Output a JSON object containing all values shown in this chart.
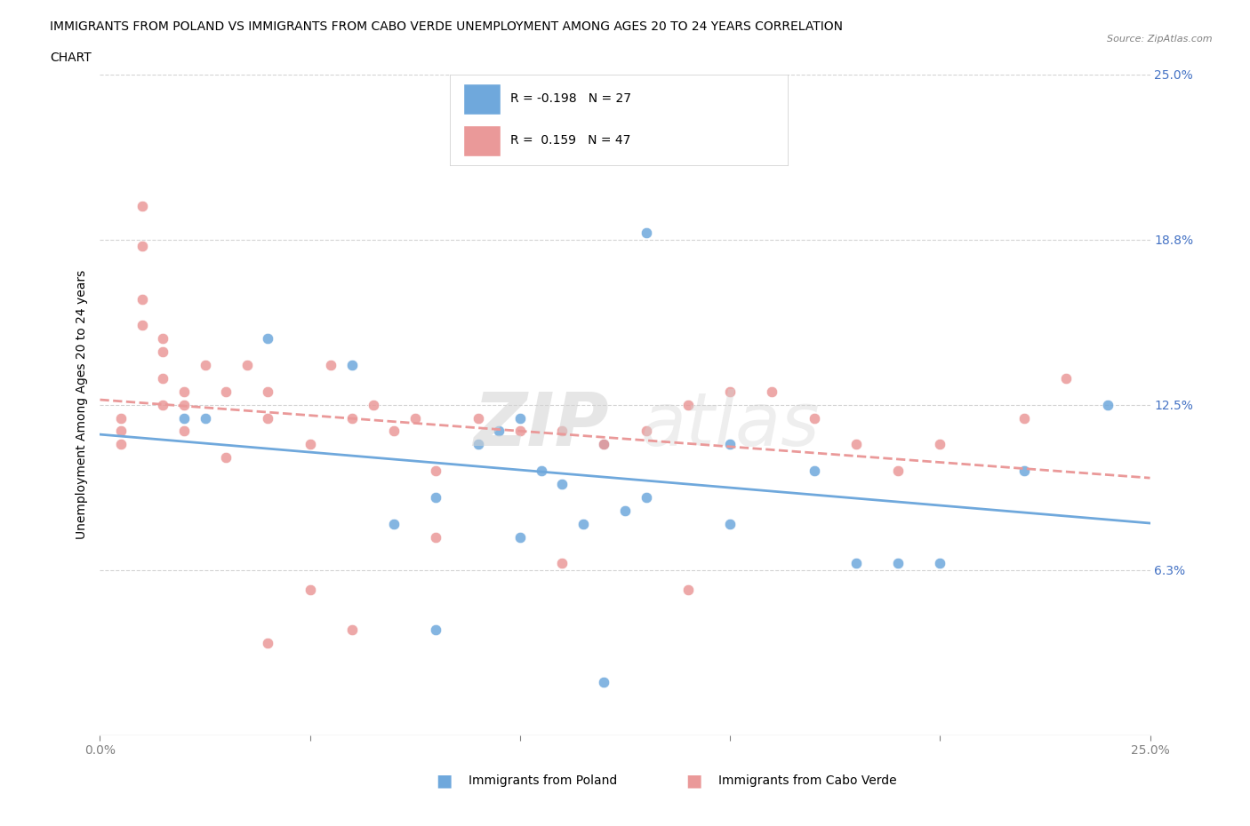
{
  "title_line1": "IMMIGRANTS FROM POLAND VS IMMIGRANTS FROM CABO VERDE UNEMPLOYMENT AMONG AGES 20 TO 24 YEARS CORRELATION",
  "title_line2": "CHART",
  "source": "Source: ZipAtlas.com",
  "ylabel": "Unemployment Among Ages 20 to 24 years",
  "xmin": 0.0,
  "xmax": 0.25,
  "ymin": 0.0,
  "ymax": 0.25,
  "poland_color": "#6fa8dc",
  "cabo_verde_color": "#ea9999",
  "poland_R": -0.198,
  "poland_N": 27,
  "cabo_verde_R": 0.159,
  "cabo_verde_N": 47,
  "tick_label_color": "#4472c4",
  "poland_scatter_x": [
    0.02,
    0.025,
    0.04,
    0.06,
    0.07,
    0.08,
    0.09,
    0.095,
    0.1,
    0.105,
    0.11,
    0.115,
    0.12,
    0.125,
    0.13,
    0.15,
    0.17,
    0.18,
    0.2,
    0.22,
    0.24,
    0.13,
    0.1,
    0.08,
    0.15,
    0.19,
    0.12
  ],
  "poland_scatter_y": [
    0.12,
    0.12,
    0.15,
    0.14,
    0.08,
    0.09,
    0.11,
    0.115,
    0.12,
    0.1,
    0.095,
    0.08,
    0.11,
    0.085,
    0.09,
    0.11,
    0.1,
    0.065,
    0.065,
    0.1,
    0.125,
    0.19,
    0.075,
    0.04,
    0.08,
    0.065,
    0.02
  ],
  "cabo_verde_scatter_x": [
    0.005,
    0.005,
    0.005,
    0.01,
    0.01,
    0.01,
    0.01,
    0.015,
    0.015,
    0.015,
    0.015,
    0.02,
    0.02,
    0.02,
    0.025,
    0.03,
    0.03,
    0.035,
    0.04,
    0.04,
    0.05,
    0.055,
    0.06,
    0.065,
    0.07,
    0.075,
    0.08,
    0.09,
    0.1,
    0.11,
    0.12,
    0.13,
    0.14,
    0.15,
    0.16,
    0.17,
    0.18,
    0.19,
    0.2,
    0.22,
    0.23,
    0.14,
    0.11,
    0.08,
    0.06,
    0.05,
    0.04
  ],
  "cabo_verde_scatter_y": [
    0.12,
    0.115,
    0.11,
    0.2,
    0.185,
    0.165,
    0.155,
    0.15,
    0.145,
    0.135,
    0.125,
    0.13,
    0.125,
    0.115,
    0.14,
    0.13,
    0.105,
    0.14,
    0.13,
    0.12,
    0.11,
    0.14,
    0.12,
    0.125,
    0.115,
    0.12,
    0.1,
    0.12,
    0.115,
    0.115,
    0.11,
    0.115,
    0.125,
    0.13,
    0.13,
    0.12,
    0.11,
    0.1,
    0.11,
    0.12,
    0.135,
    0.055,
    0.065,
    0.075,
    0.04,
    0.055,
    0.035
  ]
}
